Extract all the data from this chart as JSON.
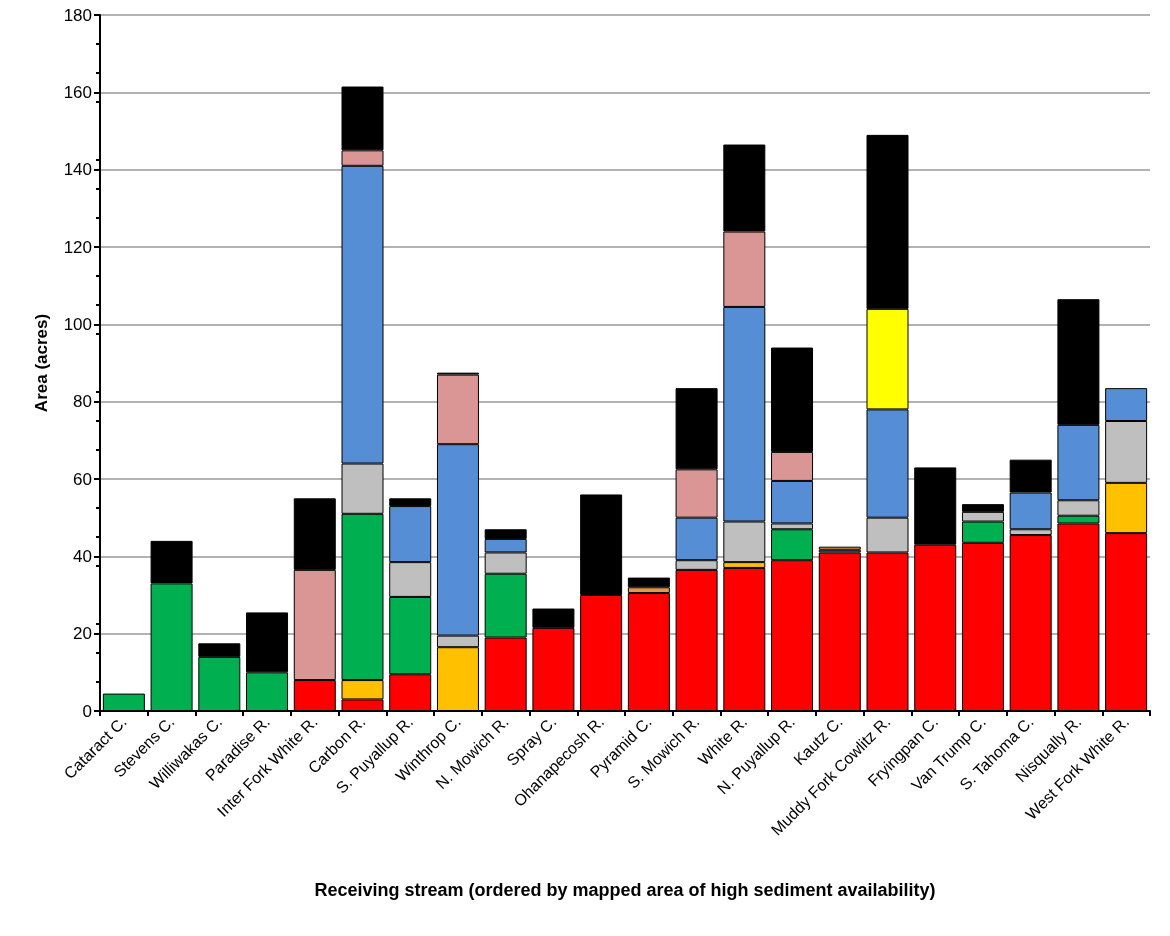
{
  "chart_data": {
    "type": "bar",
    "stacked": true,
    "xlabel": "Receiving stream (ordered by mapped area of high sediment availability)",
    "ylabel": "Area (acres)",
    "categories": [
      "Cataract C.",
      "Stevens C.",
      "Williwakas C.",
      "Paradise R.",
      "Inter Fork White R.",
      "Carbon R.",
      "S. Puyallup R.",
      "Winthrop C.",
      "N. Mowich R.",
      "Spray C.",
      "Ohanapecosh R.",
      "Pyramid C.",
      "S. Mowich R.",
      "White R.",
      "N. Puyallup R.",
      "Kautz C.",
      "Muddy Fork Cowlitz R.",
      "Fryingpan C.",
      "Van Trump C.",
      "S. Tahoma C.",
      "Nisqually R.",
      "West Fork White R."
    ],
    "series": [
      {
        "color": "#ff0000",
        "values": [
          null,
          null,
          null,
          null,
          8,
          3,
          9.5,
          null,
          19,
          21.5,
          30,
          30.5,
          36.5,
          37,
          39,
          41,
          41,
          43,
          43.5,
          45.5,
          48.5,
          46
        ]
      },
      {
        "color": "#ffc000",
        "values": [
          null,
          null,
          null,
          null,
          null,
          5,
          null,
          16.5,
          null,
          null,
          null,
          null,
          null,
          1.5,
          null,
          null,
          null,
          null,
          null,
          null,
          null,
          13
        ]
      },
      {
        "color": "#00b050",
        "values": [
          4.5,
          33,
          14,
          10,
          null,
          43,
          20,
          null,
          16.5,
          null,
          null,
          null,
          null,
          null,
          8,
          null,
          null,
          null,
          5.5,
          null,
          2,
          null
        ]
      },
      {
        "color": "#bfbfbf",
        "values": [
          null,
          null,
          null,
          null,
          null,
          13,
          9,
          3,
          5.5,
          null,
          null,
          null,
          2.5,
          10.5,
          1.5,
          null,
          9,
          null,
          2.5,
          1.5,
          4,
          16
        ]
      },
      {
        "color": "#558ed5",
        "values": [
          null,
          null,
          null,
          null,
          null,
          77,
          14.5,
          49.5,
          3.5,
          null,
          null,
          null,
          11,
          55.5,
          11,
          0.7,
          28,
          null,
          null,
          9.5,
          19.5,
          8.5
        ]
      },
      {
        "color": "#ffff00",
        "values": [
          null,
          null,
          null,
          null,
          null,
          null,
          null,
          null,
          null,
          null,
          null,
          null,
          null,
          null,
          null,
          null,
          26,
          null,
          null,
          null,
          null,
          null
        ]
      },
      {
        "color": "#d99694",
        "values": [
          null,
          null,
          null,
          null,
          28.5,
          4,
          null,
          18,
          null,
          null,
          null,
          null,
          12.5,
          19.5,
          7.5,
          null,
          null,
          null,
          null,
          null,
          null,
          null
        ]
      },
      {
        "color": "#e8954d",
        "values": [
          null,
          null,
          null,
          null,
          null,
          null,
          null,
          null,
          null,
          null,
          null,
          1.5,
          null,
          null,
          null,
          0.8,
          null,
          null,
          null,
          null,
          null,
          null
        ]
      },
      {
        "color": "#000000",
        "values": [
          null,
          11,
          3.5,
          15.5,
          18.5,
          16.5,
          2,
          0.5,
          2.5,
          5,
          26,
          2.5,
          21,
          22.5,
          27,
          null,
          45,
          20,
          2,
          8.5,
          32.5,
          null
        ]
      }
    ],
    "ylim": [
      0,
      180
    ],
    "yticks": [
      0,
      20,
      40,
      60,
      80,
      100,
      120,
      140,
      160,
      180
    ],
    "grid": "y"
  }
}
